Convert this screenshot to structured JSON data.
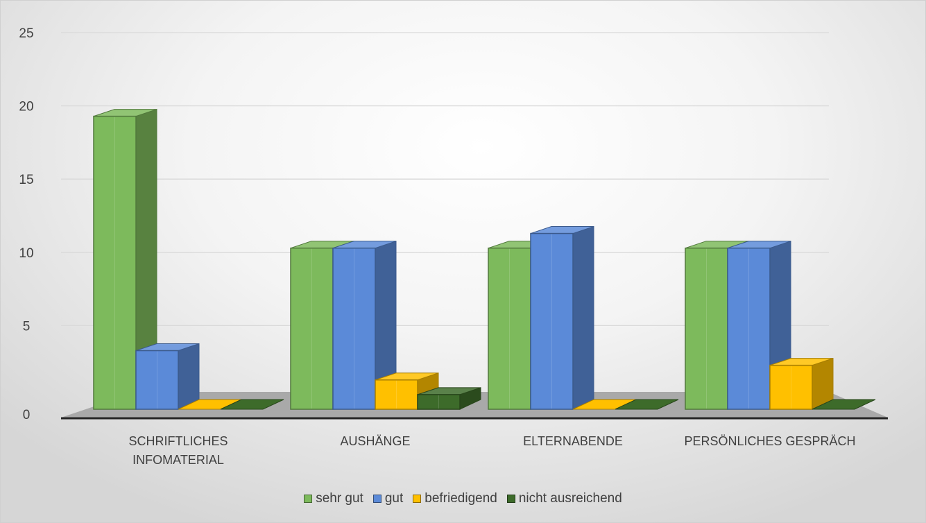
{
  "chart_data": {
    "type": "bar",
    "style": "3d-clustered-column",
    "categories": [
      "SCHRIFTLICHES INFOMATERIAL",
      "AUSHÄNGE",
      "ELTERNABENDE",
      "PERSÖNLICHES GESPRÄCH"
    ],
    "category_lines": [
      [
        "SCHRIFTLICHES",
        "INFOMATERIAL"
      ],
      [
        "AUSHÄNGE"
      ],
      [
        "ELTERNABENDE"
      ],
      [
        "PERSÖNLICHES GESPRÄCH"
      ]
    ],
    "series": [
      {
        "name": "sehr gut",
        "values": [
          20,
          11,
          11,
          11
        ],
        "color": "#7dba5c"
      },
      {
        "name": "gut",
        "values": [
          4,
          11,
          12,
          11
        ],
        "color": "#5b8ad8"
      },
      {
        "name": "befriedigend",
        "values": [
          0,
          2,
          0,
          3
        ],
        "color": "#ffc000"
      },
      {
        "name": "nicht ausreichend",
        "values": [
          0,
          1,
          0,
          0
        ],
        "color": "#3d6b2a"
      }
    ],
    "ylim": [
      0,
      25
    ],
    "yticks": [
      0,
      5,
      10,
      15,
      20,
      25
    ],
    "grid": true,
    "legend_position": "bottom",
    "title": "",
    "xlabel": "",
    "ylabel": ""
  }
}
